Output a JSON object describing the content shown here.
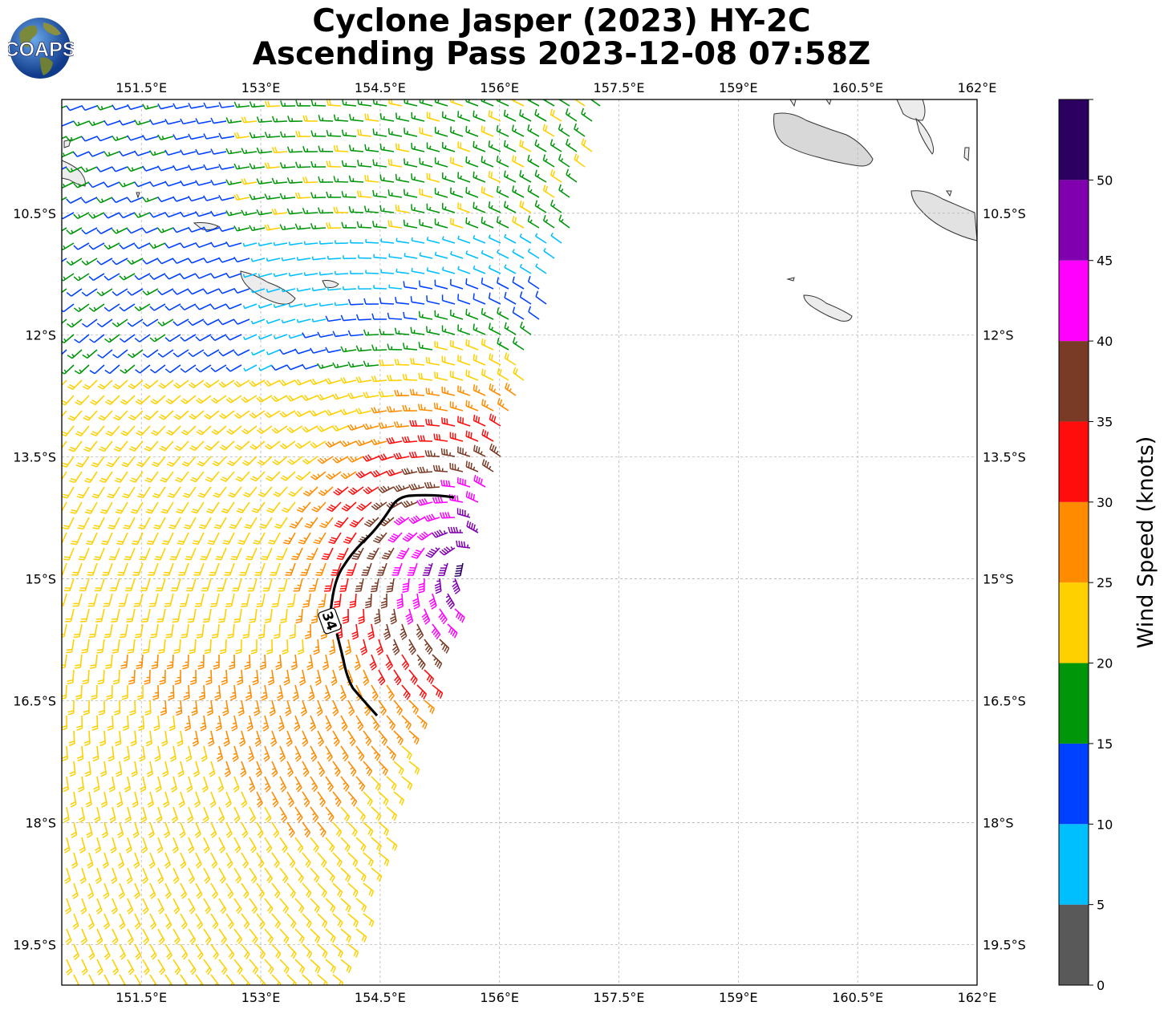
{
  "title": {
    "line1": "Cyclone Jasper (2023) HY-2C",
    "line2": "Ascending Pass 2023-12-08 07:58Z"
  },
  "logo": {
    "text": "COAPS",
    "icon": "globe-icon"
  },
  "map": {
    "lon_range": [
      150.5,
      162.0
    ],
    "lat_range": [
      -20.0,
      -9.1
    ],
    "lon_ticks": [
      "151.5°E",
      "153°E",
      "154.5°E",
      "156°E",
      "157.5°E",
      "159°E",
      "160.5°E",
      "162°E"
    ],
    "lat_ticks": [
      "10.5°S",
      "12°S",
      "13.5°S",
      "15°S",
      "16.5°S",
      "18°S",
      "19.5°S"
    ],
    "gridlines": true,
    "contour_label": "34",
    "contour_color": "#000000"
  },
  "colorbar": {
    "label": "Wind Speed (knots)",
    "ticks": [
      "0",
      "5",
      "10",
      "15",
      "20",
      "25",
      "30",
      "35",
      "40",
      "45",
      "50"
    ],
    "bins": [
      {
        "from": 0,
        "to": 5,
        "color": "#595959"
      },
      {
        "from": 5,
        "to": 10,
        "color": "#00bfff"
      },
      {
        "from": 10,
        "to": 15,
        "color": "#0040ff"
      },
      {
        "from": 15,
        "to": 20,
        "color": "#00960a"
      },
      {
        "from": 20,
        "to": 25,
        "color": "#ffd000"
      },
      {
        "from": 25,
        "to": 30,
        "color": "#ff8c00"
      },
      {
        "from": 30,
        "to": 35,
        "color": "#ff0d0d"
      },
      {
        "from": 35,
        "to": 40,
        "color": "#7a3b26"
      },
      {
        "from": 40,
        "to": 45,
        "color": "#ff00ff"
      },
      {
        "from": 45,
        "to": 50,
        "color": "#8000b0"
      },
      {
        "from": 50,
        "to": 55,
        "color": "#2b0060"
      }
    ]
  }
}
